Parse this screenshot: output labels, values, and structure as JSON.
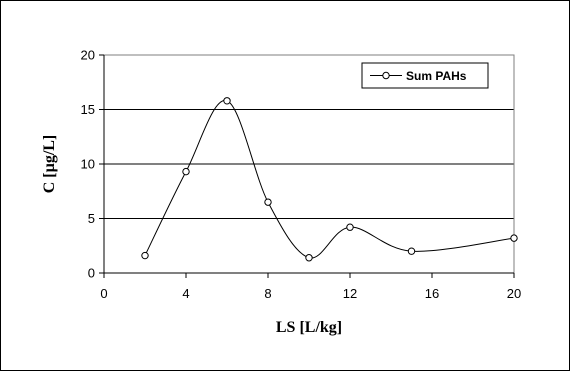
{
  "chart_data": {
    "type": "line",
    "title": "",
    "xlabel": "LS [L/kg]",
    "ylabel": "C [µg/L]",
    "xlim": [
      0,
      20
    ],
    "ylim": [
      0,
      20
    ],
    "x_ticks": [
      0,
      4,
      8,
      12,
      16,
      20
    ],
    "y_ticks": [
      0,
      5,
      10,
      15,
      20
    ],
    "grid": "horizontal",
    "legend_position": "top-right",
    "series": [
      {
        "name": "Sum PAHs",
        "color": "#000000",
        "marker": "open-circle",
        "smooth": true,
        "x": [
          2,
          4,
          6,
          8,
          10,
          12,
          15,
          20
        ],
        "y": [
          1.6,
          9.3,
          15.8,
          6.5,
          1.4,
          4.2,
          2.0,
          3.2
        ]
      }
    ]
  }
}
